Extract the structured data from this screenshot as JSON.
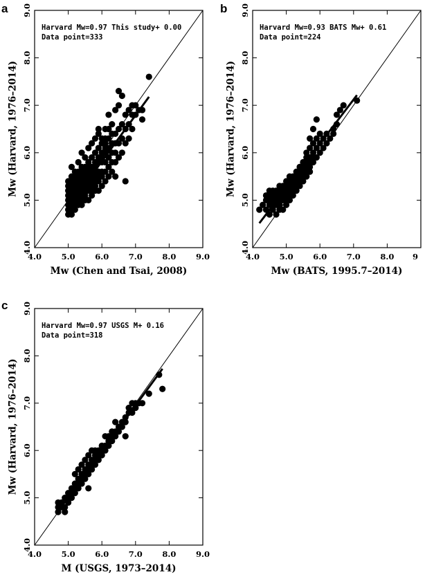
{
  "colors": {
    "ink": "#000000",
    "background": "#ffffff"
  },
  "chart_data": [
    {
      "type": "scatter",
      "panel": "a",
      "xlabel": "Mw (Chen and Tsai, 2008)",
      "ylabel": "Mw (Harvard, 1976–2014)",
      "xlim": [
        4.0,
        9.0
      ],
      "ylim": [
        4.0,
        9.0
      ],
      "x_ticks": [
        "4.0",
        "5.0",
        "6.0",
        "7.0",
        "8.0",
        "9.0"
      ],
      "y_ticks": [
        "4.0",
        "5.0",
        "6.0",
        "7.0",
        "8.0",
        "9.0"
      ],
      "annotation": [
        "Harvard Mw=0.97 This study+ 0.00",
        "Data point=333"
      ],
      "fit": {
        "slope": 0.97,
        "intercept": 0.0
      },
      "points": [
        [
          5.0,
          4.7
        ],
        [
          5.0,
          4.8
        ],
        [
          5.0,
          4.9
        ],
        [
          5.0,
          5.0
        ],
        [
          5.0,
          5.1
        ],
        [
          5.0,
          5.2
        ],
        [
          5.0,
          5.3
        ],
        [
          5.0,
          5.4
        ],
        [
          5.1,
          4.7
        ],
        [
          5.1,
          4.8
        ],
        [
          5.1,
          4.9
        ],
        [
          5.1,
          5.0
        ],
        [
          5.1,
          5.1
        ],
        [
          5.1,
          5.2
        ],
        [
          5.1,
          5.3
        ],
        [
          5.1,
          5.4
        ],
        [
          5.1,
          5.5
        ],
        [
          5.1,
          5.7
        ],
        [
          5.2,
          4.8
        ],
        [
          5.2,
          4.9
        ],
        [
          5.2,
          5.0
        ],
        [
          5.2,
          5.1
        ],
        [
          5.2,
          5.2
        ],
        [
          5.2,
          5.3
        ],
        [
          5.2,
          5.4
        ],
        [
          5.2,
          5.5
        ],
        [
          5.2,
          5.6
        ],
        [
          5.3,
          4.9
        ],
        [
          5.3,
          5.0
        ],
        [
          5.3,
          5.1
        ],
        [
          5.3,
          5.2
        ],
        [
          5.3,
          5.3
        ],
        [
          5.3,
          5.4
        ],
        [
          5.3,
          5.5
        ],
        [
          5.3,
          5.6
        ],
        [
          5.3,
          5.8
        ],
        [
          5.4,
          4.9
        ],
        [
          5.4,
          5.0
        ],
        [
          5.4,
          5.1
        ],
        [
          5.4,
          5.2
        ],
        [
          5.4,
          5.3
        ],
        [
          5.4,
          5.4
        ],
        [
          5.4,
          5.5
        ],
        [
          5.4,
          5.6
        ],
        [
          5.4,
          5.7
        ],
        [
          5.4,
          6.0
        ],
        [
          5.5,
          5.0
        ],
        [
          5.5,
          5.1
        ],
        [
          5.5,
          5.2
        ],
        [
          5.5,
          5.3
        ],
        [
          5.5,
          5.4
        ],
        [
          5.5,
          5.5
        ],
        [
          5.5,
          5.6
        ],
        [
          5.5,
          5.7
        ],
        [
          5.5,
          5.9
        ],
        [
          5.6,
          5.0
        ],
        [
          5.6,
          5.2
        ],
        [
          5.6,
          5.3
        ],
        [
          5.6,
          5.4
        ],
        [
          5.6,
          5.5
        ],
        [
          5.6,
          5.6
        ],
        [
          5.6,
          5.7
        ],
        [
          5.6,
          5.8
        ],
        [
          5.6,
          6.1
        ],
        [
          5.7,
          5.1
        ],
        [
          5.7,
          5.2
        ],
        [
          5.7,
          5.3
        ],
        [
          5.7,
          5.4
        ],
        [
          5.7,
          5.5
        ],
        [
          5.7,
          5.6
        ],
        [
          5.7,
          5.7
        ],
        [
          5.7,
          5.9
        ],
        [
          5.7,
          6.2
        ],
        [
          5.8,
          5.2
        ],
        [
          5.8,
          5.3
        ],
        [
          5.8,
          5.4
        ],
        [
          5.8,
          5.5
        ],
        [
          5.8,
          5.6
        ],
        [
          5.8,
          5.7
        ],
        [
          5.8,
          5.8
        ],
        [
          5.8,
          6.0
        ],
        [
          5.8,
          6.3
        ],
        [
          5.9,
          5.2
        ],
        [
          5.9,
          5.4
        ],
        [
          5.9,
          5.5
        ],
        [
          5.9,
          5.6
        ],
        [
          5.9,
          5.8
        ],
        [
          5.9,
          5.9
        ],
        [
          5.9,
          6.1
        ],
        [
          5.9,
          6.4
        ],
        [
          5.9,
          6.5
        ],
        [
          6.0,
          5.3
        ],
        [
          6.0,
          5.5
        ],
        [
          6.0,
          5.6
        ],
        [
          6.0,
          5.8
        ],
        [
          6.0,
          5.9
        ],
        [
          6.0,
          6.0
        ],
        [
          6.0,
          6.2
        ],
        [
          6.0,
          6.3
        ],
        [
          6.1,
          5.4
        ],
        [
          6.1,
          5.6
        ],
        [
          6.1,
          5.8
        ],
        [
          6.1,
          6.0
        ],
        [
          6.1,
          6.1
        ],
        [
          6.1,
          6.2
        ],
        [
          6.1,
          6.3
        ],
        [
          6.1,
          6.5
        ],
        [
          6.2,
          5.5
        ],
        [
          6.2,
          5.7
        ],
        [
          6.2,
          5.9
        ],
        [
          6.2,
          6.1
        ],
        [
          6.2,
          6.3
        ],
        [
          6.2,
          6.5
        ],
        [
          6.2,
          6.8
        ],
        [
          6.3,
          5.6
        ],
        [
          6.3,
          5.8
        ],
        [
          6.3,
          6.0
        ],
        [
          6.3,
          6.2
        ],
        [
          6.3,
          6.4
        ],
        [
          6.3,
          6.6
        ],
        [
          6.4,
          5.5
        ],
        [
          6.4,
          5.8
        ],
        [
          6.4,
          6.0
        ],
        [
          6.4,
          6.2
        ],
        [
          6.4,
          6.4
        ],
        [
          6.4,
          6.9
        ],
        [
          6.5,
          5.9
        ],
        [
          6.5,
          6.2
        ],
        [
          6.5,
          6.5
        ],
        [
          6.5,
          7.0
        ],
        [
          6.5,
          7.3
        ],
        [
          6.6,
          6.0
        ],
        [
          6.6,
          6.3
        ],
        [
          6.6,
          6.6
        ],
        [
          6.6,
          7.2
        ],
        [
          6.7,
          6.2
        ],
        [
          6.7,
          6.5
        ],
        [
          6.7,
          6.8
        ],
        [
          6.7,
          5.4
        ],
        [
          6.8,
          6.3
        ],
        [
          6.8,
          6.6
        ],
        [
          6.8,
          6.9
        ],
        [
          6.9,
          6.5
        ],
        [
          6.9,
          6.8
        ],
        [
          6.9,
          7.0
        ],
        [
          7.0,
          6.8
        ],
        [
          7.0,
          7.0
        ],
        [
          7.1,
          6.9
        ],
        [
          7.2,
          6.9
        ],
        [
          7.2,
          6.7
        ],
        [
          7.4,
          7.6
        ]
      ]
    },
    {
      "type": "scatter",
      "panel": "b",
      "xlabel": "Mw (BATS, 1995.7–2014)",
      "ylabel": "Mw (Harvard, 1976–2014)",
      "xlim": [
        4.0,
        9.0
      ],
      "ylim": [
        4.0,
        9.0
      ],
      "x_ticks": [
        "4.0",
        "5.0",
        "6.0",
        "7.0",
        "8.0",
        "9"
      ],
      "y_ticks": [
        "4.0",
        "5.0",
        "6.0",
        "7.0",
        "8.0",
        "9.0"
      ],
      "annotation": [
        "Harvard Mw=0.93 BATS Mw+ 0.61",
        "Data point=224"
      ],
      "fit": {
        "slope": 0.93,
        "intercept": 0.61
      },
      "points": [
        [
          4.2,
          4.8
        ],
        [
          4.3,
          4.9
        ],
        [
          4.4,
          4.8
        ],
        [
          4.4,
          5.0
        ],
        [
          4.4,
          5.1
        ],
        [
          4.5,
          4.7
        ],
        [
          4.5,
          4.9
        ],
        [
          4.5,
          5.0
        ],
        [
          4.5,
          5.1
        ],
        [
          4.5,
          5.2
        ],
        [
          4.6,
          4.8
        ],
        [
          4.6,
          4.9
        ],
        [
          4.6,
          5.0
        ],
        [
          4.6,
          5.1
        ],
        [
          4.6,
          5.2
        ],
        [
          4.7,
          4.7
        ],
        [
          4.7,
          4.9
        ],
        [
          4.7,
          5.0
        ],
        [
          4.7,
          5.1
        ],
        [
          4.7,
          5.2
        ],
        [
          4.8,
          4.8
        ],
        [
          4.8,
          4.9
        ],
        [
          4.8,
          5.0
        ],
        [
          4.8,
          5.1
        ],
        [
          4.8,
          5.2
        ],
        [
          4.8,
          5.3
        ],
        [
          4.9,
          4.8
        ],
        [
          4.9,
          5.0
        ],
        [
          4.9,
          5.1
        ],
        [
          4.9,
          5.2
        ],
        [
          4.9,
          5.3
        ],
        [
          5.0,
          4.9
        ],
        [
          5.0,
          5.0
        ],
        [
          5.0,
          5.1
        ],
        [
          5.0,
          5.2
        ],
        [
          5.0,
          5.3
        ],
        [
          5.0,
          5.4
        ],
        [
          5.1,
          5.0
        ],
        [
          5.1,
          5.1
        ],
        [
          5.1,
          5.2
        ],
        [
          5.1,
          5.3
        ],
        [
          5.1,
          5.4
        ],
        [
          5.1,
          5.5
        ],
        [
          5.2,
          5.1
        ],
        [
          5.2,
          5.2
        ],
        [
          5.2,
          5.3
        ],
        [
          5.2,
          5.4
        ],
        [
          5.2,
          5.5
        ],
        [
          5.3,
          5.2
        ],
        [
          5.3,
          5.3
        ],
        [
          5.3,
          5.4
        ],
        [
          5.3,
          5.5
        ],
        [
          5.3,
          5.6
        ],
        [
          5.4,
          5.3
        ],
        [
          5.4,
          5.4
        ],
        [
          5.4,
          5.5
        ],
        [
          5.4,
          5.6
        ],
        [
          5.4,
          5.7
        ],
        [
          5.5,
          5.4
        ],
        [
          5.5,
          5.5
        ],
        [
          5.5,
          5.6
        ],
        [
          5.5,
          5.7
        ],
        [
          5.5,
          5.8
        ],
        [
          5.6,
          5.5
        ],
        [
          5.6,
          5.6
        ],
        [
          5.6,
          5.7
        ],
        [
          5.6,
          5.8
        ],
        [
          5.6,
          5.9
        ],
        [
          5.6,
          6.0
        ],
        [
          5.7,
          5.6
        ],
        [
          5.7,
          5.7
        ],
        [
          5.7,
          5.8
        ],
        [
          5.7,
          5.9
        ],
        [
          5.7,
          6.1
        ],
        [
          5.7,
          6.3
        ],
        [
          5.8,
          5.8
        ],
        [
          5.8,
          5.9
        ],
        [
          5.8,
          6.0
        ],
        [
          5.8,
          6.2
        ],
        [
          5.8,
          6.5
        ],
        [
          5.9,
          5.9
        ],
        [
          5.9,
          6.1
        ],
        [
          5.9,
          6.3
        ],
        [
          5.9,
          6.7
        ],
        [
          6.0,
          6.0
        ],
        [
          6.0,
          6.2
        ],
        [
          6.0,
          6.4
        ],
        [
          6.1,
          6.1
        ],
        [
          6.1,
          6.3
        ],
        [
          6.2,
          6.2
        ],
        [
          6.2,
          6.4
        ],
        [
          6.3,
          6.3
        ],
        [
          6.4,
          6.4
        ],
        [
          6.4,
          6.5
        ],
        [
          6.5,
          6.6
        ],
        [
          6.5,
          6.8
        ],
        [
          6.6,
          6.9
        ],
        [
          6.7,
          7.0
        ],
        [
          7.1,
          7.1
        ]
      ]
    },
    {
      "type": "scatter",
      "panel": "c",
      "xlabel": "M (USGS, 1973–2014)",
      "ylabel": "Mw (Harvard, 1976–2014)",
      "xlim": [
        4.0,
        9.0
      ],
      "ylim": [
        4.0,
        9.0
      ],
      "x_ticks": [
        "4.0",
        "5.0",
        "6.0",
        "7.0",
        "8.0",
        "9.0"
      ],
      "y_ticks": [
        "4.0",
        "5.0",
        "6.0",
        "7.0",
        "8.0",
        "9.0"
      ],
      "annotation": [
        "Harvard Mw=0.97 USGS M+ 0.16",
        "Data point=318"
      ],
      "fit": {
        "slope": 0.97,
        "intercept": 0.16
      },
      "points": [
        [
          4.7,
          4.7
        ],
        [
          4.7,
          4.8
        ],
        [
          4.7,
          4.9
        ],
        [
          4.8,
          4.8
        ],
        [
          4.8,
          4.9
        ],
        [
          4.9,
          4.7
        ],
        [
          4.9,
          4.8
        ],
        [
          4.9,
          5.0
        ],
        [
          5.0,
          4.9
        ],
        [
          5.0,
          5.0
        ],
        [
          5.0,
          5.1
        ],
        [
          5.1,
          5.0
        ],
        [
          5.1,
          5.1
        ],
        [
          5.1,
          5.2
        ],
        [
          5.2,
          5.1
        ],
        [
          5.2,
          5.2
        ],
        [
          5.2,
          5.3
        ],
        [
          5.2,
          5.5
        ],
        [
          5.3,
          5.2
        ],
        [
          5.3,
          5.3
        ],
        [
          5.3,
          5.4
        ],
        [
          5.3,
          5.6
        ],
        [
          5.4,
          5.3
        ],
        [
          5.4,
          5.4
        ],
        [
          5.4,
          5.5
        ],
        [
          5.4,
          5.7
        ],
        [
          5.5,
          5.4
        ],
        [
          5.5,
          5.5
        ],
        [
          5.5,
          5.6
        ],
        [
          5.5,
          5.8
        ],
        [
          5.6,
          5.5
        ],
        [
          5.6,
          5.6
        ],
        [
          5.6,
          5.7
        ],
        [
          5.6,
          5.9
        ],
        [
          5.6,
          5.2
        ],
        [
          5.7,
          5.6
        ],
        [
          5.7,
          5.7
        ],
        [
          5.7,
          5.8
        ],
        [
          5.7,
          6.0
        ],
        [
          5.8,
          5.7
        ],
        [
          5.8,
          5.8
        ],
        [
          5.8,
          5.9
        ],
        [
          5.8,
          6.0
        ],
        [
          5.9,
          5.8
        ],
        [
          5.9,
          5.9
        ],
        [
          5.9,
          6.0
        ],
        [
          6.0,
          5.9
        ],
        [
          6.0,
          6.0
        ],
        [
          6.0,
          6.1
        ],
        [
          6.1,
          6.0
        ],
        [
          6.1,
          6.1
        ],
        [
          6.1,
          6.3
        ],
        [
          6.2,
          6.1
        ],
        [
          6.2,
          6.2
        ],
        [
          6.2,
          6.3
        ],
        [
          6.3,
          6.2
        ],
        [
          6.3,
          6.3
        ],
        [
          6.3,
          6.4
        ],
        [
          6.4,
          6.3
        ],
        [
          6.4,
          6.4
        ],
        [
          6.4,
          6.6
        ],
        [
          6.5,
          6.4
        ],
        [
          6.5,
          6.5
        ],
        [
          6.6,
          6.5
        ],
        [
          6.6,
          6.6
        ],
        [
          6.7,
          6.3
        ],
        [
          6.7,
          6.6
        ],
        [
          6.7,
          6.7
        ],
        [
          6.8,
          6.8
        ],
        [
          6.8,
          6.9
        ],
        [
          6.9,
          6.8
        ],
        [
          6.9,
          7.0
        ],
        [
          7.0,
          6.9
        ],
        [
          7.0,
          7.0
        ],
        [
          7.1,
          7.0
        ],
        [
          7.2,
          7.0
        ],
        [
          7.4,
          7.2
        ],
        [
          7.7,
          7.6
        ],
        [
          7.8,
          7.3
        ]
      ]
    }
  ]
}
